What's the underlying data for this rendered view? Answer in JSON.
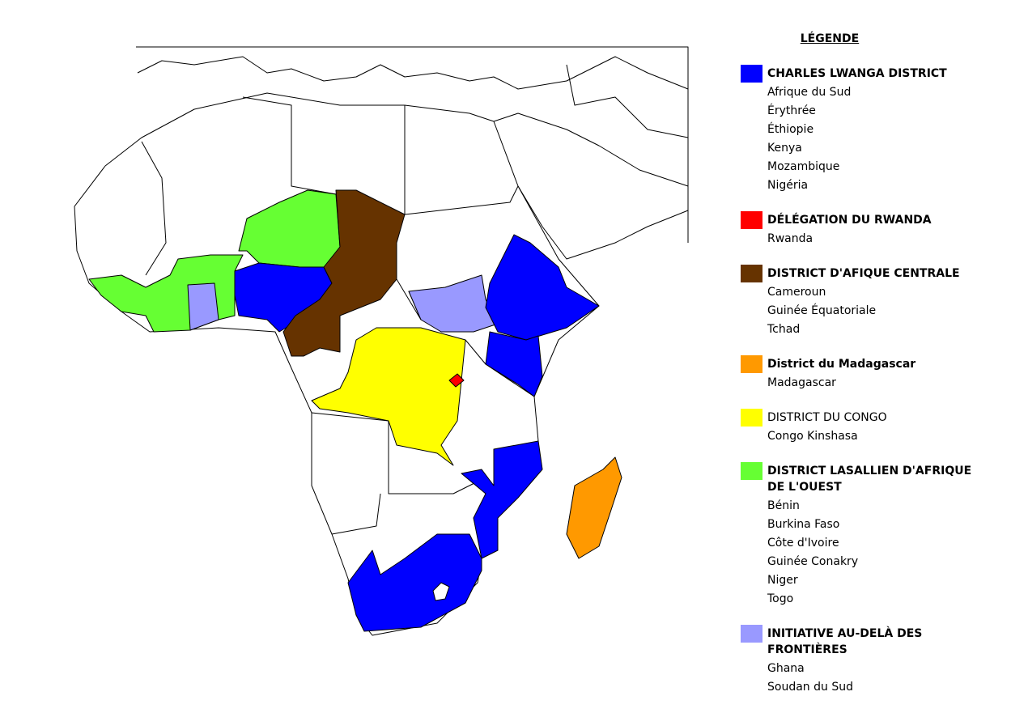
{
  "legend": {
    "title": "LÉGENDE",
    "groups": [
      {
        "name": "CHARLES LWANGA DISTRICT",
        "color": "#0000ff",
        "bold": true,
        "items": [
          "Afrique du Sud",
          "Érythrée",
          "Éthiopie",
          "Kenya",
          "Mozambique",
          "Nigéria"
        ]
      },
      {
        "name": "DÉLÉGATION DU RWANDA",
        "color": "#ff0000",
        "bold": true,
        "items": [
          "Rwanda"
        ]
      },
      {
        "name": "DISTRICT D'AFIQUE CENTRALE",
        "color": "#663300",
        "bold": true,
        "items": [
          "Cameroun",
          "Guinée Équatoriale",
          "Tchad"
        ]
      },
      {
        "name": "District du Madagascar",
        "color": "#ff9900",
        "bold": true,
        "items": [
          "Madagascar"
        ]
      },
      {
        "name": "DISTRICT DU CONGO",
        "color": "#ffff00",
        "bold": false,
        "items": [
          "Congo Kinshasa"
        ]
      },
      {
        "name": "DISTRICT LASALLIEN D'AFRIQUE DE L'OUEST",
        "color": "#66ff33",
        "bold": true,
        "items": [
          "Bénin",
          "Burkina Faso",
          "Côte d'Ivoire",
          "Guinée Conakry",
          "Niger",
          "Togo"
        ]
      },
      {
        "name": "INITIATIVE AU-DELÀ DES FRONTIÈRES",
        "color": "#9999ff",
        "bold": true,
        "items": [
          "Ghana",
          "Soudan du Sud"
        ]
      }
    ]
  }
}
